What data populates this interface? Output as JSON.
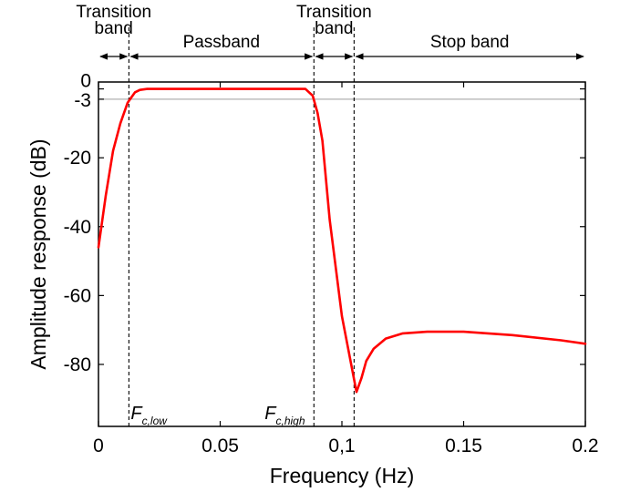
{
  "chart_data": {
    "type": "line",
    "title": "",
    "xlabel": "Frequency (Hz)",
    "ylabel": "Amplitude response (dB)",
    "xlim": [
      0,
      0.2
    ],
    "ylim": [
      -98,
      2
    ],
    "grid": false,
    "x_ticks": [
      {
        "value": 0,
        "label": "0"
      },
      {
        "value": 0.05,
        "label": "0.05"
      },
      {
        "value": 0.1,
        "label": "0,1"
      },
      {
        "value": 0.15,
        "label": "0.15"
      },
      {
        "value": 0.2,
        "label": "0.2"
      }
    ],
    "y_ticks": [
      {
        "value": 0,
        "label": "0"
      },
      {
        "value": -3,
        "label": "-3"
      },
      {
        "value": -20,
        "label": "-20"
      },
      {
        "value": -40,
        "label": "-40"
      },
      {
        "value": -60,
        "label": "-60"
      },
      {
        "value": -80,
        "label": "-80"
      }
    ],
    "reference_line_db": -3,
    "cutoffs": [
      {
        "freq": 0.0125,
        "main": "F",
        "sub": "c,low"
      },
      {
        "freq": 0.0885,
        "main": "F",
        "sub": "c,high"
      },
      {
        "freq": 0.105
      }
    ],
    "bands": [
      {
        "label_lines": [
          "Transition",
          "band"
        ],
        "from": 0,
        "to": 0.0125
      },
      {
        "label_lines": [
          "Passband"
        ],
        "from": 0.0125,
        "to": 0.0885
      },
      {
        "label_lines": [
          "Transition",
          "band"
        ],
        "from": 0.0885,
        "to": 0.105
      },
      {
        "label_lines": [
          "Stop band"
        ],
        "from": 0.105,
        "to": 0.2
      }
    ],
    "series": [
      {
        "color": "#ff0000",
        "x": [
          0,
          0.003,
          0.006,
          0.009,
          0.012,
          0.0135,
          0.015,
          0.017,
          0.02,
          0.03,
          0.05,
          0.07,
          0.085,
          0.088,
          0.09,
          0.092,
          0.095,
          0.1,
          0.103,
          0.106,
          0.108,
          0.11,
          0.113,
          0.118,
          0.125,
          0.135,
          0.15,
          0.17,
          0.19,
          0.2
        ],
        "y": [
          -46,
          -31,
          -18,
          -10,
          -4,
          -2.5,
          -1,
          -0.3,
          0,
          0,
          0,
          0,
          0,
          -2,
          -7,
          -15,
          -38,
          -66,
          -77,
          -88,
          -84,
          -79,
          -75.5,
          -72.5,
          -71,
          -70.5,
          -70.5,
          -71.5,
          -73,
          -74
        ]
      }
    ]
  }
}
